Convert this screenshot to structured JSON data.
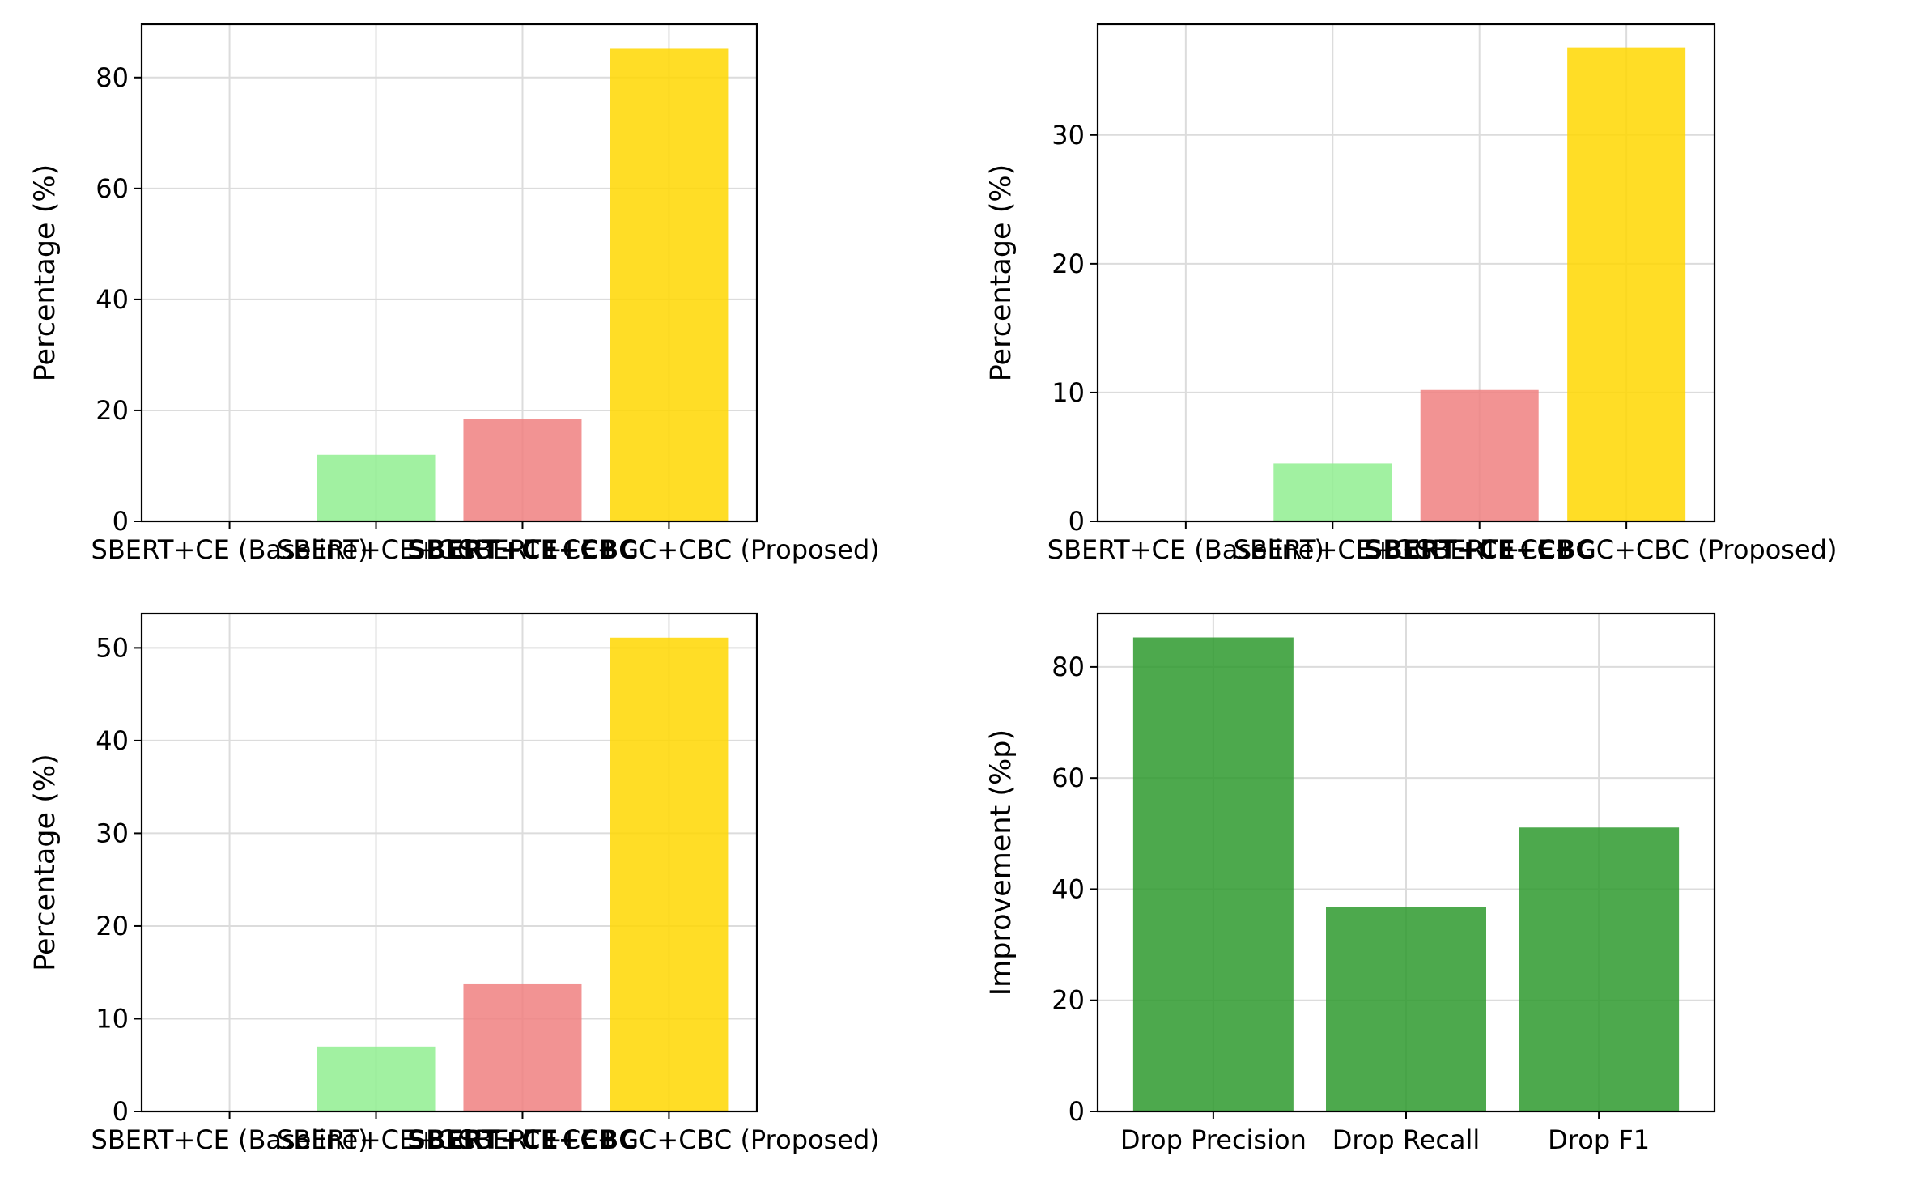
{
  "chart_data": [
    {
      "type": "bar",
      "categories": [
        "SBERT+CE (Baseline)",
        "SBERT+CE+GC",
        "SBERT+CE+CBC",
        "SBERT+CE+GC+CBC (Proposed)"
      ],
      "values": [
        0,
        12,
        18.4,
        85.3
      ],
      "colors": [
        "#90ee90",
        "#90ee90",
        "#f08080",
        "#ffd700"
      ],
      "bold_categories": [
        false,
        false,
        true,
        false
      ],
      "ylabel": "Percentage (%)",
      "ylim": [
        0,
        89.6
      ],
      "yticks": [
        0,
        20,
        40,
        60,
        80
      ],
      "grid": true
    },
    {
      "type": "bar",
      "categories": [
        "SBERT+CE (Baseline)",
        "SBERT+CE+GC",
        "SBERT+CE+CBC",
        "SBERT+CE+GC+CBC (Proposed)"
      ],
      "values": [
        0,
        4.5,
        10.2,
        36.8
      ],
      "colors": [
        "#90ee90",
        "#90ee90",
        "#f08080",
        "#ffd700"
      ],
      "bold_categories": [
        false,
        false,
        true,
        false
      ],
      "ylabel": "Percentage (%)",
      "ylim": [
        0,
        38.6
      ],
      "yticks": [
        0,
        10,
        20,
        30
      ],
      "grid": true
    },
    {
      "type": "bar",
      "categories": [
        "SBERT+CE (Baseline)",
        "SBERT+CE+GC",
        "SBERT+CE+CBC",
        "SBERT+CE+GC+CBC (Proposed)"
      ],
      "values": [
        0,
        7,
        13.8,
        51.1
      ],
      "colors": [
        "#90ee90",
        "#90ee90",
        "#f08080",
        "#ffd700"
      ],
      "bold_categories": [
        false,
        false,
        true,
        false
      ],
      "ylabel": "Percentage (%)",
      "ylim": [
        0,
        53.7
      ],
      "yticks": [
        0,
        10,
        20,
        30,
        40,
        50
      ],
      "grid": true
    },
    {
      "type": "bar",
      "categories": [
        "Drop Precision",
        "Drop Recall",
        "Drop F1"
      ],
      "values": [
        85.3,
        36.8,
        51.1
      ],
      "colors": [
        "#2e9a2e",
        "#2e9a2e",
        "#2e9a2e"
      ],
      "bold_categories": [
        false,
        false,
        false
      ],
      "ylabel": "Improvement (%p)",
      "ylim": [
        0,
        89.6
      ],
      "yticks": [
        0,
        20,
        40,
        60,
        80
      ],
      "grid": true,
      "zero_line": true
    }
  ]
}
